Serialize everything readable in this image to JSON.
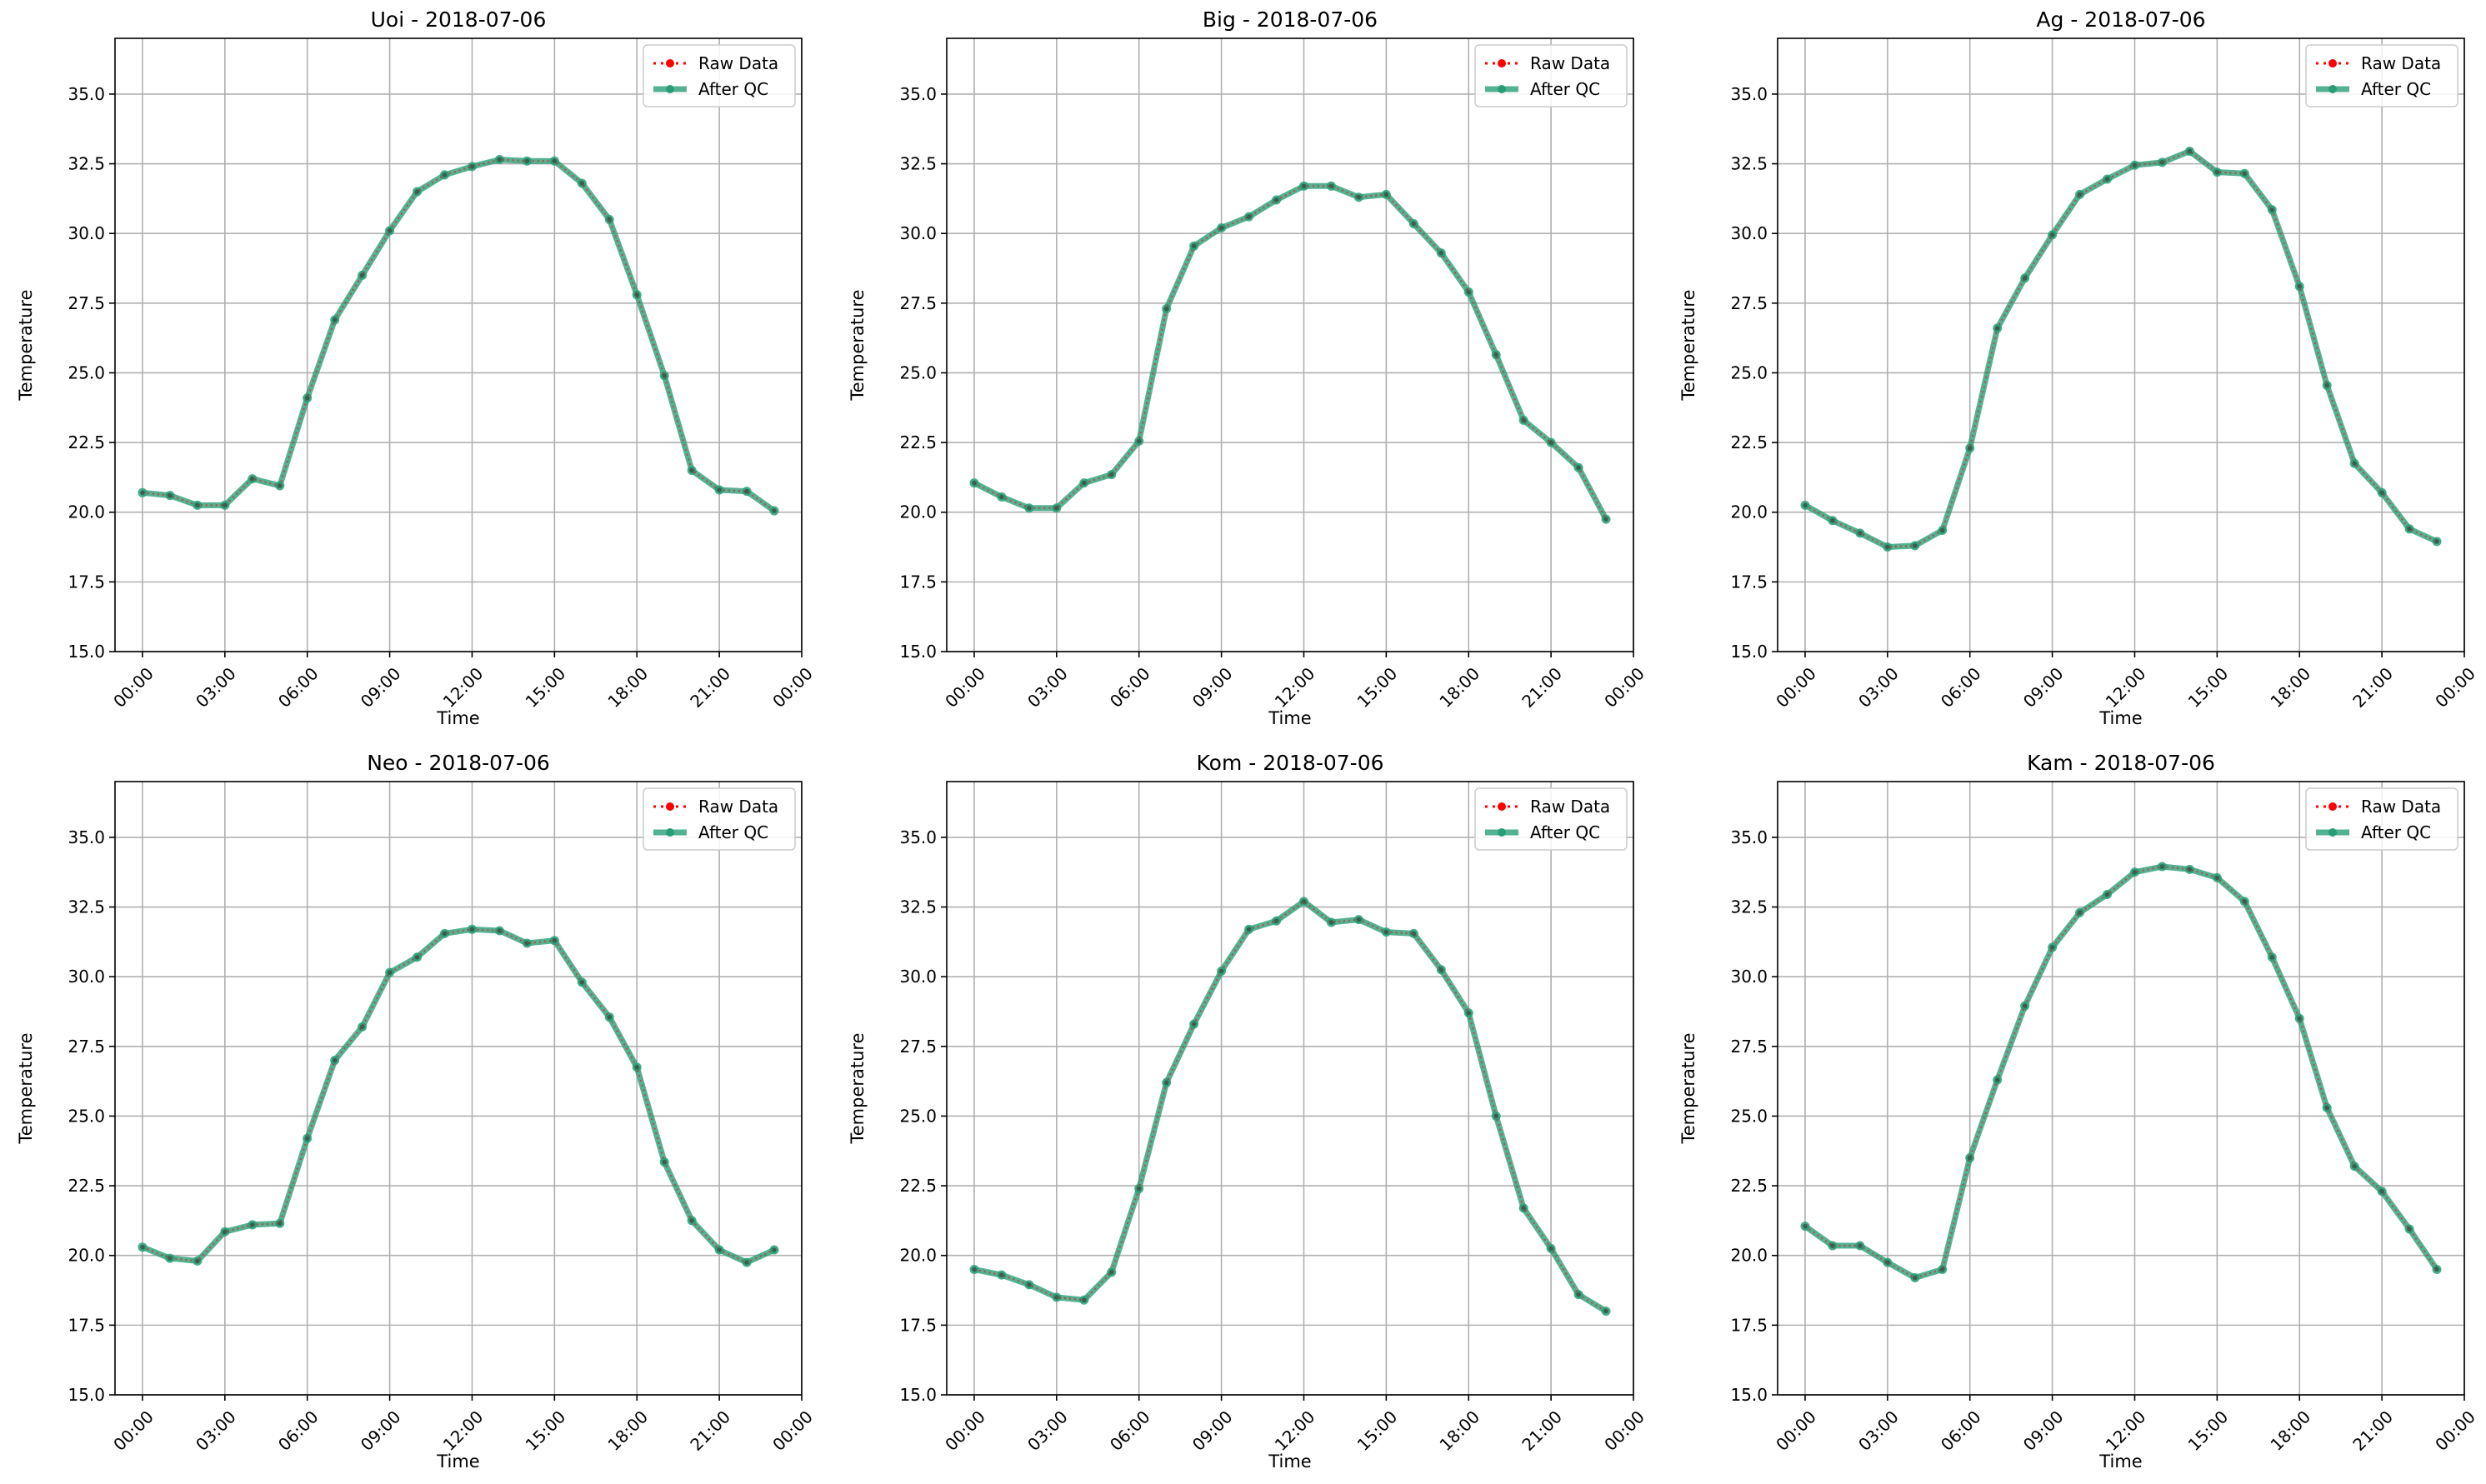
{
  "chart_data": [
    {
      "type": "line",
      "title": "Uoi - 2018-07-06",
      "xlabel": "Time",
      "ylabel": "Temperature",
      "ylim": [
        15,
        37
      ],
      "xlim_hours": [
        -1,
        24
      ],
      "x_ticks": [
        "00:00",
        "03:00",
        "06:00",
        "09:00",
        "12:00",
        "15:00",
        "18:00",
        "21:00",
        "00:00"
      ],
      "y_ticks": [
        "15.0",
        "17.5",
        "20.0",
        "22.5",
        "25.0",
        "27.5",
        "30.0",
        "32.5",
        "35.0"
      ],
      "grid": true,
      "legend_position": "top-right",
      "series": [
        {
          "name": "Raw Data",
          "style": "dotted",
          "color": "#ff0000",
          "values": [
            20.7,
            20.6,
            20.25,
            20.25,
            21.2,
            20.95,
            24.1,
            26.9,
            28.5,
            30.1,
            31.5,
            32.1,
            32.4,
            32.65,
            32.6,
            32.6,
            31.8,
            30.5,
            27.8,
            24.9,
            21.5,
            20.8,
            20.75,
            20.05
          ]
        },
        {
          "name": "After QC",
          "style": "solid",
          "color": "#2a9d78",
          "values": [
            20.7,
            20.6,
            20.25,
            20.25,
            21.2,
            20.95,
            24.1,
            26.9,
            28.5,
            30.1,
            31.5,
            32.1,
            32.4,
            32.65,
            32.6,
            32.6,
            31.8,
            30.5,
            27.8,
            24.9,
            21.5,
            20.8,
            20.75,
            20.05
          ]
        }
      ]
    },
    {
      "type": "line",
      "title": "Big - 2018-07-06",
      "xlabel": "Time",
      "ylabel": "Temperature",
      "ylim": [
        15,
        37
      ],
      "xlim_hours": [
        -1,
        24
      ],
      "x_ticks": [
        "00:00",
        "03:00",
        "06:00",
        "09:00",
        "12:00",
        "15:00",
        "18:00",
        "21:00",
        "00:00"
      ],
      "y_ticks": [
        "15.0",
        "17.5",
        "20.0",
        "22.5",
        "25.0",
        "27.5",
        "30.0",
        "32.5",
        "35.0"
      ],
      "grid": true,
      "legend_position": "top-right",
      "series": [
        {
          "name": "Raw Data",
          "style": "dotted",
          "color": "#ff0000",
          "values": [
            21.05,
            20.55,
            20.15,
            20.15,
            21.05,
            21.35,
            22.55,
            27.3,
            29.55,
            30.2,
            30.6,
            31.2,
            31.7,
            31.7,
            31.3,
            31.4,
            30.35,
            29.3,
            27.9,
            25.65,
            23.3,
            22.5,
            21.6,
            19.75
          ]
        },
        {
          "name": "After QC",
          "style": "solid",
          "color": "#2a9d78",
          "values": [
            21.05,
            20.55,
            20.15,
            20.15,
            21.05,
            21.35,
            22.55,
            27.3,
            29.55,
            30.2,
            30.6,
            31.2,
            31.7,
            31.7,
            31.3,
            31.4,
            30.35,
            29.3,
            27.9,
            25.65,
            23.3,
            22.5,
            21.6,
            19.75
          ]
        }
      ]
    },
    {
      "type": "line",
      "title": "Ag - 2018-07-06",
      "xlabel": "Time",
      "ylabel": "Temperature",
      "ylim": [
        15,
        37
      ],
      "xlim_hours": [
        -1,
        24
      ],
      "x_ticks": [
        "00:00",
        "03:00",
        "06:00",
        "09:00",
        "12:00",
        "15:00",
        "18:00",
        "21:00",
        "00:00"
      ],
      "y_ticks": [
        "15.0",
        "17.5",
        "20.0",
        "22.5",
        "25.0",
        "27.5",
        "30.0",
        "32.5",
        "35.0"
      ],
      "grid": true,
      "legend_position": "top-right",
      "series": [
        {
          "name": "Raw Data",
          "style": "dotted",
          "color": "#ff0000",
          "values": [
            20.25,
            19.7,
            19.25,
            18.75,
            18.8,
            19.35,
            22.3,
            26.6,
            28.4,
            29.95,
            31.4,
            31.95,
            32.45,
            32.55,
            32.95,
            32.2,
            32.15,
            30.85,
            28.1,
            24.55,
            21.75,
            20.7,
            19.4,
            18.95
          ]
        },
        {
          "name": "After QC",
          "style": "solid",
          "color": "#2a9d78",
          "values": [
            20.25,
            19.7,
            19.25,
            18.75,
            18.8,
            19.35,
            22.3,
            26.6,
            28.4,
            29.95,
            31.4,
            31.95,
            32.45,
            32.55,
            32.95,
            32.2,
            32.15,
            30.85,
            28.1,
            24.55,
            21.75,
            20.7,
            19.4,
            18.95
          ]
        }
      ]
    },
    {
      "type": "line",
      "title": "Neo - 2018-07-06",
      "xlabel": "Time",
      "ylabel": "Temperature",
      "ylim": [
        15,
        37
      ],
      "xlim_hours": [
        -1,
        24
      ],
      "x_ticks": [
        "00:00",
        "03:00",
        "06:00",
        "09:00",
        "12:00",
        "15:00",
        "18:00",
        "21:00",
        "00:00"
      ],
      "y_ticks": [
        "15.0",
        "17.5",
        "20.0",
        "22.5",
        "25.0",
        "27.5",
        "30.0",
        "32.5",
        "35.0"
      ],
      "grid": true,
      "legend_position": "top-right",
      "series": [
        {
          "name": "Raw Data",
          "style": "dotted",
          "color": "#ff0000",
          "values": [
            20.3,
            19.9,
            19.8,
            20.85,
            21.1,
            21.15,
            24.2,
            27.0,
            28.2,
            30.15,
            30.7,
            31.55,
            31.7,
            31.65,
            31.2,
            31.3,
            29.8,
            28.55,
            26.75,
            23.35,
            21.25,
            20.2,
            19.75,
            20.2
          ]
        },
        {
          "name": "After QC",
          "style": "solid",
          "color": "#2a9d78",
          "values": [
            20.3,
            19.9,
            19.8,
            20.85,
            21.1,
            21.15,
            24.2,
            27.0,
            28.2,
            30.15,
            30.7,
            31.55,
            31.7,
            31.65,
            31.2,
            31.3,
            29.8,
            28.55,
            26.75,
            23.35,
            21.25,
            20.2,
            19.75,
            20.2
          ]
        }
      ]
    },
    {
      "type": "line",
      "title": "Kom - 2018-07-06",
      "xlabel": "Time",
      "ylabel": "Temperature",
      "ylim": [
        15,
        37
      ],
      "xlim_hours": [
        -1,
        24
      ],
      "x_ticks": [
        "00:00",
        "03:00",
        "06:00",
        "09:00",
        "12:00",
        "15:00",
        "18:00",
        "21:00",
        "00:00"
      ],
      "y_ticks": [
        "15.0",
        "17.5",
        "20.0",
        "22.5",
        "25.0",
        "27.5",
        "30.0",
        "32.5",
        "35.0"
      ],
      "grid": true,
      "legend_position": "top-right",
      "series": [
        {
          "name": "Raw Data",
          "style": "dotted",
          "color": "#ff0000",
          "values": [
            19.5,
            19.3,
            18.95,
            18.5,
            18.4,
            19.4,
            22.4,
            26.2,
            28.3,
            30.2,
            31.7,
            32.0,
            32.7,
            31.95,
            32.05,
            31.6,
            31.55,
            30.25,
            28.7,
            25.0,
            21.7,
            20.25,
            18.6,
            18.0
          ]
        },
        {
          "name": "After QC",
          "style": "solid",
          "color": "#2a9d78",
          "values": [
            19.5,
            19.3,
            18.95,
            18.5,
            18.4,
            19.4,
            22.4,
            26.2,
            28.3,
            30.2,
            31.7,
            32.0,
            32.7,
            31.95,
            32.05,
            31.6,
            31.55,
            30.25,
            28.7,
            25.0,
            21.7,
            20.25,
            18.6,
            18.0
          ]
        }
      ]
    },
    {
      "type": "line",
      "title": "Kam - 2018-07-06",
      "xlabel": "Time",
      "ylabel": "Temperature",
      "ylim": [
        15,
        37
      ],
      "xlim_hours": [
        -1,
        24
      ],
      "x_ticks": [
        "00:00",
        "03:00",
        "06:00",
        "09:00",
        "12:00",
        "15:00",
        "18:00",
        "21:00",
        "00:00"
      ],
      "y_ticks": [
        "15.0",
        "17.5",
        "20.0",
        "22.5",
        "25.0",
        "27.5",
        "30.0",
        "32.5",
        "35.0"
      ],
      "grid": true,
      "legend_position": "top-right",
      "series": [
        {
          "name": "Raw Data",
          "style": "dotted",
          "color": "#ff0000",
          "values": [
            21.05,
            20.35,
            20.35,
            19.75,
            19.2,
            19.5,
            23.5,
            26.3,
            28.95,
            31.05,
            32.3,
            32.95,
            33.75,
            33.95,
            33.85,
            33.55,
            32.7,
            30.7,
            28.5,
            25.3,
            23.2,
            22.3,
            20.95,
            19.5
          ]
        },
        {
          "name": "After QC",
          "style": "solid",
          "color": "#2a9d78",
          "values": [
            21.05,
            20.35,
            20.35,
            19.75,
            19.2,
            19.5,
            23.5,
            26.3,
            28.95,
            31.05,
            32.3,
            32.95,
            33.75,
            33.95,
            33.85,
            33.55,
            32.7,
            30.7,
            28.5,
            25.3,
            23.2,
            22.3,
            20.95,
            19.5
          ]
        }
      ]
    }
  ]
}
